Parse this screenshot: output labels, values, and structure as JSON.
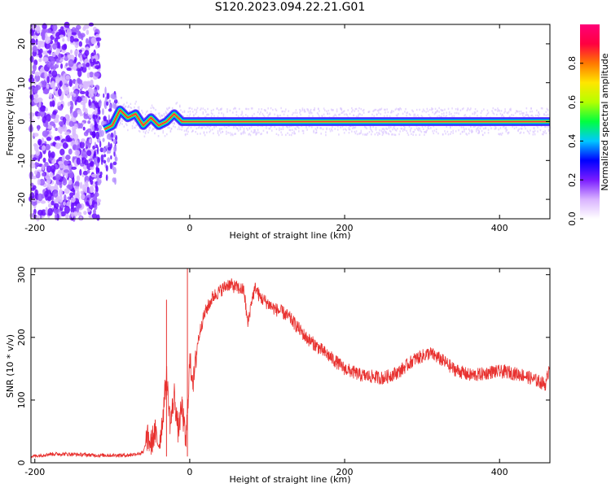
{
  "title": "S120.2023.094.22.21.G01",
  "chart_data": [
    {
      "type": "heatmap",
      "xlabel": "Height of straight line (km)",
      "ylabel": "Frequency (Hz)",
      "xlim": [
        -205,
        465
      ],
      "ylim": [
        -25,
        25
      ],
      "xticks": [
        -200,
        0,
        200,
        400
      ],
      "yticks": [
        -20,
        -10,
        0,
        10,
        20
      ],
      "colorbar": {
        "label": "Normalized spectral amplitude",
        "range": [
          0,
          1
        ],
        "ticks": [
          0.0,
          0.2,
          0.4,
          0.6,
          0.8
        ],
        "colors": [
          "#ffffff",
          "#d9b3ff",
          "#7a1cff",
          "#0000ff",
          "#00c8ff",
          "#00ff40",
          "#b4ff00",
          "#ffe600",
          "#ff7800",
          "#ff0040",
          "#ff0078"
        ]
      },
      "ridge": {
        "description_points_x": [
          -110,
          -100,
          -90,
          -80,
          -70,
          -60,
          -50,
          -40,
          -30,
          -20,
          -10,
          0,
          100,
          200,
          260,
          300,
          400,
          460
        ],
        "frequency_y": [
          -2,
          -1,
          3,
          1,
          2,
          -1,
          1,
          -1,
          0,
          2,
          0,
          0,
          0,
          0,
          0,
          0,
          0,
          0
        ]
      },
      "grid": false
    },
    {
      "type": "line",
      "xlabel": "Height of straight line (km)",
      "ylabel": "SNR (10 * v/v)",
      "xlim": [
        -205,
        465
      ],
      "ylim": [
        0,
        310
      ],
      "xticks": [
        -200,
        0,
        200,
        400
      ],
      "yticks": [
        0,
        100,
        200,
        300
      ],
      "color": "#e8312f",
      "grid": false,
      "series": [
        {
          "x": [
            -205,
            -180,
            -160,
            -140,
            -120,
            -100,
            -80,
            -70,
            -60,
            -55,
            -50,
            -45,
            -40,
            -35,
            -30,
            -25,
            -20,
            -15,
            -10,
            -5,
            0,
            5,
            10,
            15,
            20,
            30,
            40,
            50,
            60,
            70,
            75,
            80,
            85,
            90,
            100,
            110,
            120,
            130,
            140,
            150,
            160,
            170,
            180,
            190,
            200,
            210,
            220,
            230,
            240,
            250,
            260,
            270,
            280,
            290,
            300,
            310,
            320,
            330,
            340,
            350,
            360,
            370,
            380,
            390,
            400,
            410,
            420,
            430,
            440,
            450,
            460,
            465
          ],
          "y": [
            10,
            14,
            14,
            13,
            12,
            12,
            12,
            14,
            16,
            40,
            30,
            50,
            25,
            70,
            140,
            60,
            110,
            50,
            90,
            30,
            160,
            130,
            190,
            220,
            240,
            265,
            275,
            285,
            280,
            275,
            220,
            260,
            280,
            265,
            255,
            245,
            240,
            230,
            215,
            200,
            190,
            180,
            170,
            160,
            150,
            145,
            140,
            138,
            137,
            135,
            140,
            145,
            155,
            165,
            170,
            175,
            168,
            160,
            150,
            145,
            140,
            140,
            142,
            145,
            145,
            145,
            142,
            140,
            135,
            130,
            125,
            160
          ]
        }
      ],
      "spikes": [
        {
          "x": -30,
          "y": 260
        },
        {
          "x": -3,
          "y": 310
        }
      ]
    }
  ]
}
